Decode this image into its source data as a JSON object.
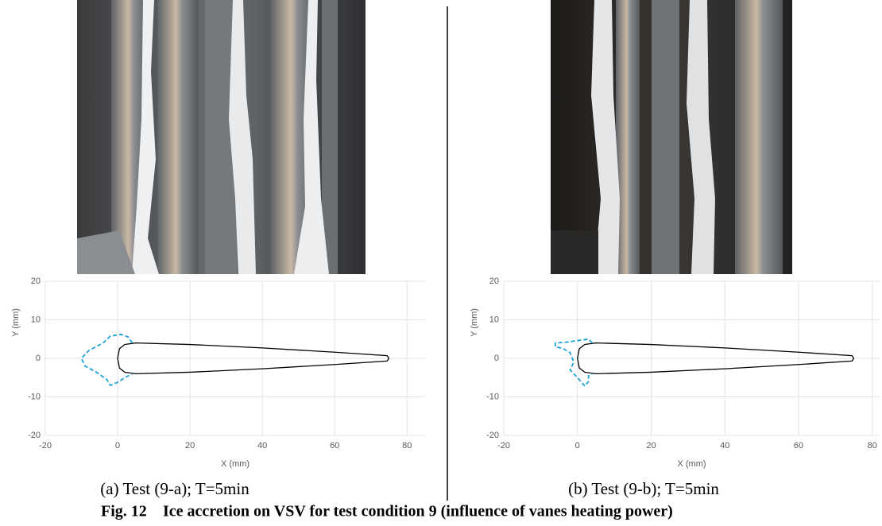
{
  "chart_data": [
    {
      "type": "line",
      "caption": "(a)  Test (9-a); T=5min",
      "xlabel": "X (mm)",
      "ylabel": "Y (mm)",
      "xlim": [
        -20,
        85
      ],
      "ylim": [
        -20,
        20
      ],
      "xticks": [
        -20,
        0,
        20,
        40,
        60,
        80
      ],
      "yticks": [
        -20,
        -10,
        0,
        10,
        20
      ],
      "grid": true,
      "series": [
        {
          "color": "#000000",
          "dashed": false,
          "x": [
            75,
            74.5,
            60,
            40,
            20,
            5,
            2,
            0.5,
            0,
            0.5,
            2,
            5,
            20,
            40,
            60,
            74.5,
            75
          ],
          "values": [
            0,
            0.7,
            1.6,
            2.7,
            3.6,
            4,
            3.6,
            2.5,
            0,
            -2.5,
            -3.6,
            -4,
            -3.6,
            -2.7,
            -1.6,
            -0.7,
            0
          ]
        },
        {
          "color": "#1ba1d8",
          "dashed": true,
          "x": [
            4,
            3,
            1,
            -2,
            -4,
            -8,
            -10,
            -9,
            -6,
            -3,
            -2,
            0,
            2,
            4
          ],
          "values": [
            4,
            5.5,
            6.2,
            5.8,
            4,
            2,
            0,
            -2,
            -3.5,
            -5.5,
            -7,
            -6.2,
            -5,
            -4
          ]
        }
      ]
    },
    {
      "type": "line",
      "caption": "(b)  Test (9-b); T=5min",
      "xlabel": "X (mm)",
      "ylabel": "Y (mm)",
      "xlim": [
        -20,
        82
      ],
      "ylim": [
        -20,
        20
      ],
      "xticks": [
        -20,
        0,
        20,
        40,
        60,
        80
      ],
      "yticks": [
        -20,
        -10,
        0,
        10,
        20
      ],
      "grid": true,
      "series": [
        {
          "color": "#000000",
          "dashed": false,
          "x": [
            75,
            74.5,
            60,
            40,
            20,
            5,
            2,
            0.5,
            0,
            0.5,
            2,
            5,
            20,
            40,
            60,
            74.5,
            75
          ],
          "values": [
            0,
            0.7,
            1.6,
            2.7,
            3.6,
            4,
            3.6,
            2.5,
            0,
            -2.5,
            -3.6,
            -4,
            -3.6,
            -2.7,
            -1.6,
            -0.7,
            0
          ]
        },
        {
          "color": "#1ba1d8",
          "dashed": true,
          "x": [
            4,
            3,
            0,
            -3,
            -6,
            -6,
            -4,
            -2,
            -1,
            -2,
            0,
            2,
            3,
            3,
            4
          ],
          "values": [
            4,
            5,
            4.6,
            4.2,
            4,
            3,
            2.6,
            1.5,
            -1,
            -3,
            -5,
            -7.2,
            -6,
            -4.5,
            -4
          ]
        }
      ]
    }
  ],
  "figure_caption": {
    "label": "Fig. 12",
    "text": "Ice accretion on VSV for test condition 9 (influence of vanes heating power)"
  }
}
